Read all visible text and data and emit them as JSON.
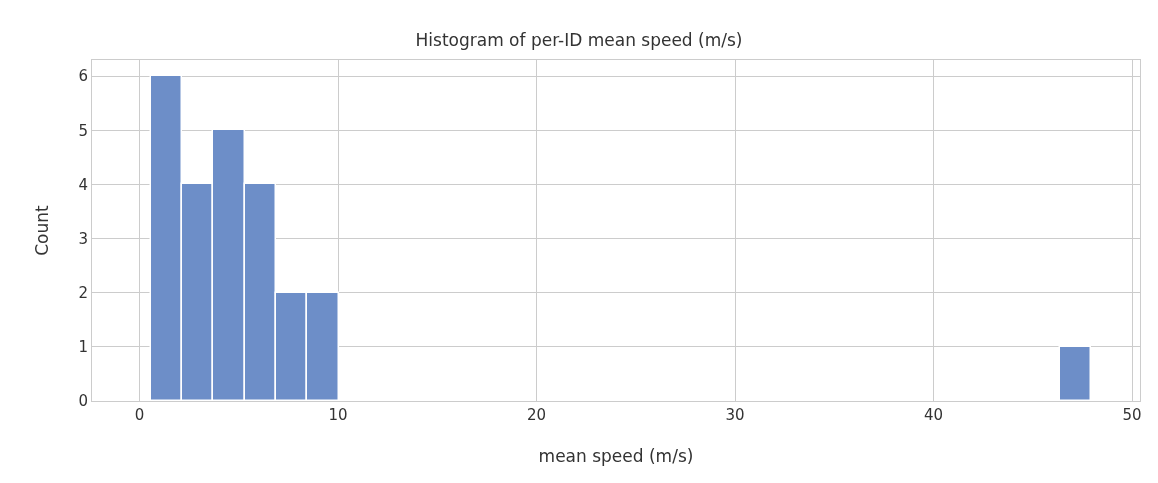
{
  "chart_data": {
    "type": "histogram",
    "title": "Histogram of per-ID mean speed (m/s)",
    "xlabel": "mean speed (m/s)",
    "ylabel": "Count",
    "bins": [
      0.55,
      2.13,
      3.71,
      5.29,
      6.87,
      8.45,
      10.03,
      11.61,
      13.19,
      14.77,
      16.35,
      17.93,
      19.51,
      21.09,
      22.67,
      24.25,
      25.83,
      27.41,
      28.99,
      30.57,
      32.15,
      33.73,
      35.31,
      36.89,
      38.47,
      40.05,
      41.63,
      43.21,
      44.79,
      46.37,
      47.95
    ],
    "values": [
      6,
      4,
      5,
      4,
      2,
      2,
      0,
      0,
      0,
      0,
      0,
      0,
      0,
      0,
      0,
      0,
      0,
      0,
      0,
      0,
      0,
      0,
      0,
      0,
      0,
      0,
      0,
      0,
      0,
      1
    ],
    "color": "#6d8ec8",
    "xlim": [
      -2.4,
      50.4
    ],
    "ylim": [
      0,
      6.3
    ],
    "xticks": [
      0,
      10,
      20,
      30,
      40,
      50
    ],
    "yticks": [
      0,
      1,
      2,
      3,
      4,
      5,
      6
    ],
    "grid": true
  }
}
